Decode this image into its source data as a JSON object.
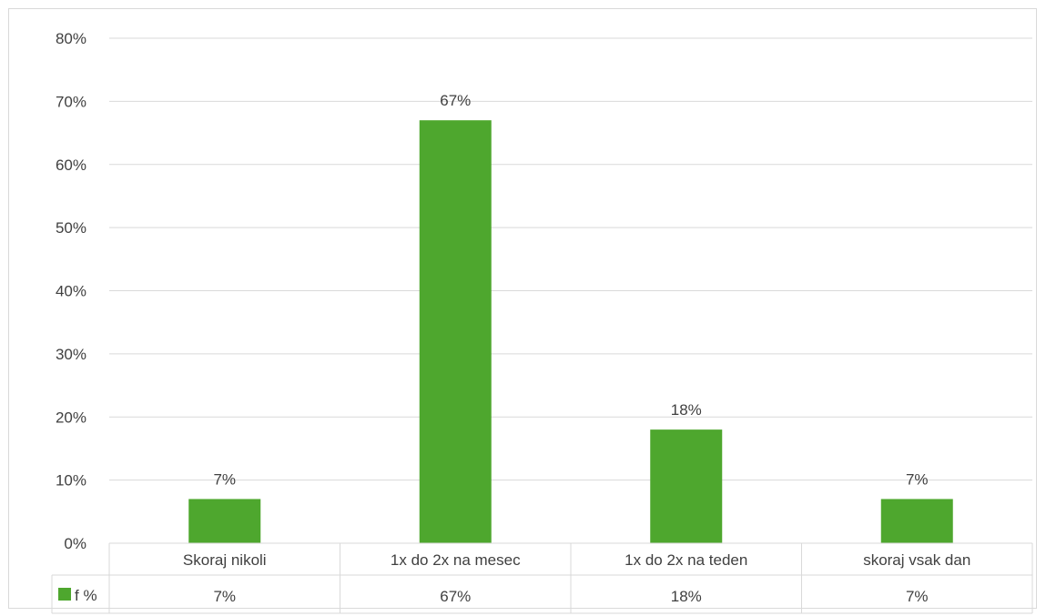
{
  "chart_data": {
    "type": "bar",
    "categories": [
      "Skoraj nikoli",
      "1x do 2x na mesec",
      "1x do 2x na teden",
      "skoraj vsak dan"
    ],
    "series": [
      {
        "name": "f %",
        "values": [
          7,
          67,
          18,
          7
        ],
        "color": "#4ea72e"
      }
    ],
    "data_labels": [
      "7%",
      "67%",
      "18%",
      "7%"
    ],
    "table_values": [
      "7%",
      "67%",
      "18%",
      "7%"
    ],
    "y_ticks": [
      "0%",
      "10%",
      "20%",
      "30%",
      "40%",
      "50%",
      "60%",
      "70%",
      "80%"
    ],
    "ylim": [
      0,
      80
    ],
    "grid": true,
    "legend_placement": "data-table",
    "colors": {
      "bar": "#4ea72e",
      "grid": "#d9d9d9",
      "text": "#404040"
    }
  }
}
